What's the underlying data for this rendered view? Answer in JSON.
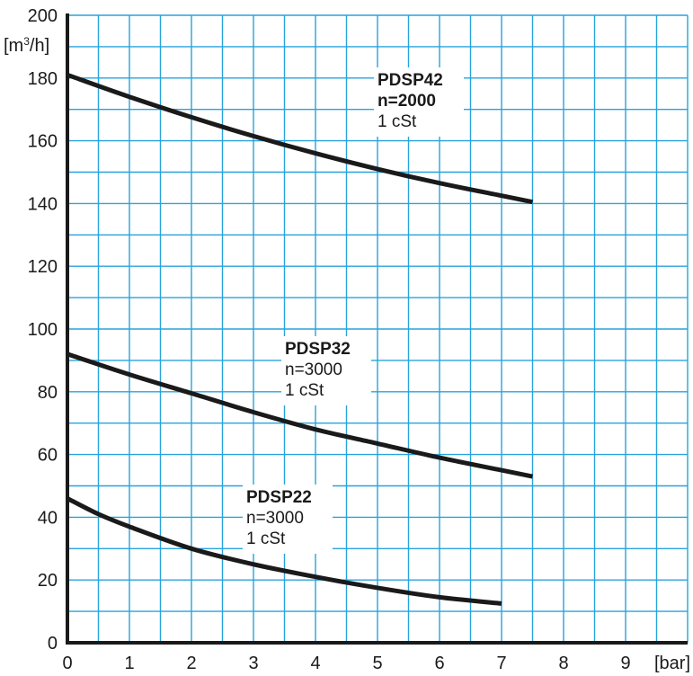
{
  "chart_data": {
    "type": "line",
    "title": "",
    "xlabel": "[bar]",
    "ylabel": "[m³/h]",
    "xlim": [
      0,
      10
    ],
    "ylim": [
      0,
      200
    ],
    "x_ticks": [
      "0",
      "1",
      "2",
      "3",
      "4",
      "5",
      "6",
      "7",
      "8",
      "9"
    ],
    "y_ticks": [
      "0",
      "20",
      "40",
      "60",
      "80",
      "100",
      "120",
      "140",
      "160",
      "180",
      "200"
    ],
    "grid": true,
    "grid_color": "#29a3dc",
    "line_color": "#1a1a1a",
    "series": [
      {
        "name": "PDSP42",
        "speed": "n=2000",
        "viscosity": "1 cSt",
        "x": [
          0,
          1,
          2,
          3,
          4,
          5,
          6,
          7,
          7.5
        ],
        "y": [
          181,
          174,
          167.5,
          161.5,
          156,
          151,
          146.5,
          142.5,
          140.5
        ]
      },
      {
        "name": "PDSP32",
        "speed": "n=3000",
        "viscosity": "1 cSt",
        "x": [
          0,
          1,
          2,
          3,
          4,
          5,
          6,
          7,
          7.5
        ],
        "y": [
          92,
          85.5,
          79.5,
          73.5,
          68,
          63.5,
          59,
          55,
          53
        ]
      },
      {
        "name": "PDSP22",
        "speed": "n=3000",
        "viscosity": "1 cSt",
        "x": [
          0,
          0.5,
          1,
          2,
          3,
          4,
          5,
          6,
          7
        ],
        "y": [
          46,
          41,
          37,
          30,
          25,
          21,
          17.5,
          14.5,
          12.5
        ]
      }
    ]
  }
}
